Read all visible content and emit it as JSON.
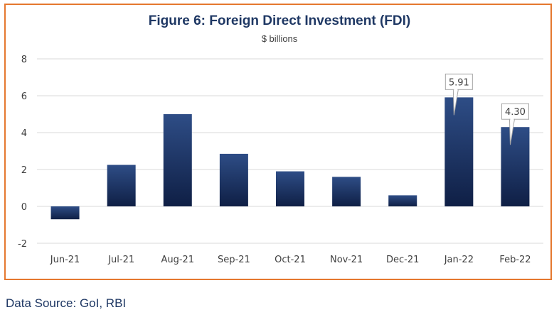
{
  "chart_data": {
    "type": "bar",
    "title": "Figure 6: Foreign Direct Investment (FDI)",
    "subtitle": "$ billions",
    "xlabel": "",
    "ylabel": "",
    "categories": [
      "Jun-21",
      "Jul-21",
      "Aug-21",
      "Sep-21",
      "Oct-21",
      "Nov-21",
      "Dec-21",
      "Jan-22",
      "Feb-22"
    ],
    "values": [
      -0.7,
      2.25,
      5.0,
      2.85,
      1.9,
      1.6,
      0.6,
      5.91,
      4.3
    ],
    "data_labels": {
      "7": "5.91",
      "8": "4.30"
    },
    "ylim": [
      -2,
      8
    ],
    "yticks": [
      "-2",
      "0",
      "2",
      "4",
      "6",
      "8"
    ],
    "grid": true,
    "legend": "none",
    "colors": {
      "bar_top": "#2e4d86",
      "bar_bottom": "#0f1f45",
      "frame": "#e5782f",
      "title": "#1f3864",
      "grid": "#d9d9d9"
    }
  },
  "footer": {
    "source": "Data Source: GoI, RBI"
  }
}
